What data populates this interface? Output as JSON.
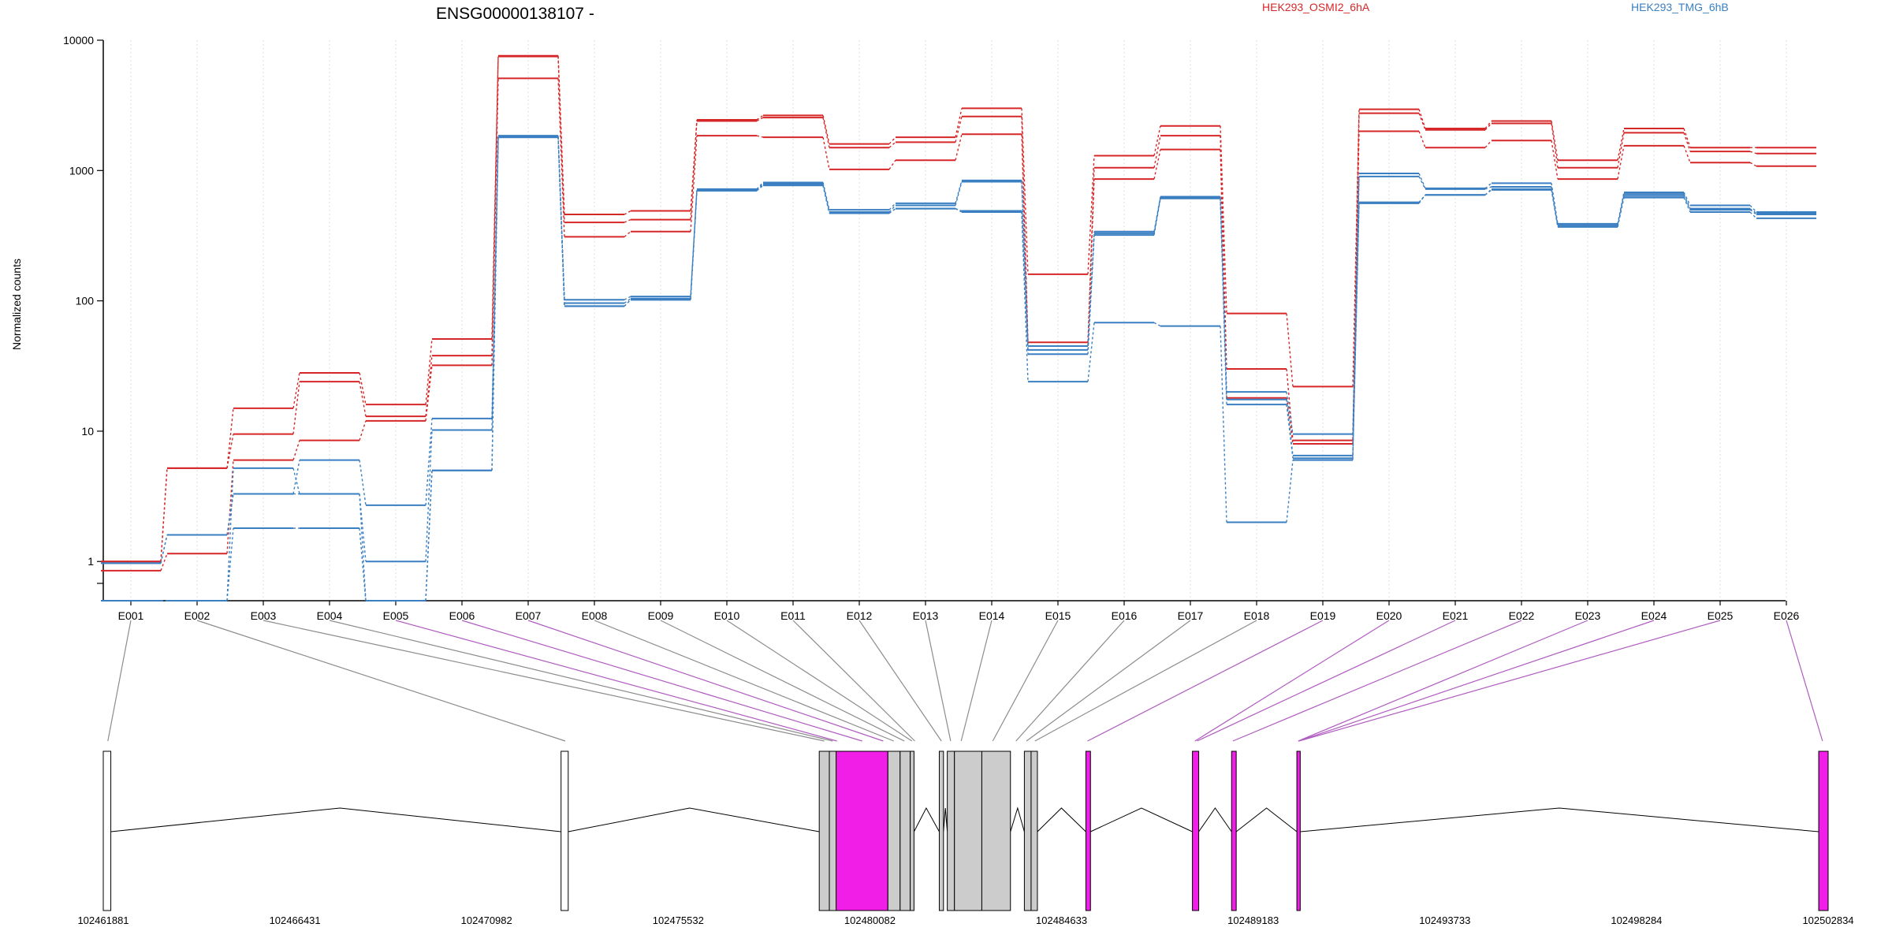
{
  "chart_data": {
    "type": "line",
    "title": "ENSG00000138107 -",
    "ylabel": "Normalized counts",
    "xlabel": "",
    "yscale": "log",
    "ylim": [
      0.5,
      10000
    ],
    "yticks": [
      "1",
      "10",
      "100",
      "1000",
      "10000"
    ],
    "grid": "vertical dotted lines at exon bins",
    "legend_placement": "top",
    "groups": [
      {
        "name": "HEK293_OSMI2_6hA",
        "color": "#d62728"
      },
      {
        "name": "HEK293_TMG_6hB",
        "color": "#3a7fc1"
      }
    ],
    "categories": [
      "E001",
      "E002",
      "E003",
      "E004",
      "E005",
      "E006",
      "E007",
      "E008",
      "E009",
      "E010",
      "E011",
      "E012",
      "E013",
      "E014",
      "E015",
      "E016",
      "E017",
      "E018",
      "E019",
      "E020",
      "E021",
      "E022",
      "E023",
      "E024",
      "E025",
      "E026"
    ],
    "series": [
      {
        "group": 0,
        "values": [
          1.0,
          5.2,
          15,
          28,
          16,
          51,
          7600,
          460,
          490,
          2450,
          2650,
          1600,
          1800,
          3000,
          160,
          1300,
          2200,
          80,
          22,
          2950,
          2100,
          2400,
          1200,
          2100,
          1500,
          1500
        ]
      },
      {
        "group": 0,
        "values": [
          1.0,
          5.2,
          9.5,
          24,
          13,
          38,
          7500,
          400,
          420,
          2400,
          2550,
          1500,
          1650,
          2600,
          48,
          1050,
          1850,
          30,
          8.5,
          2750,
          2050,
          2300,
          1050,
          1950,
          1400,
          1350
        ]
      },
      {
        "group": 0,
        "values": [
          0.85,
          1.15,
          6.0,
          8.5,
          12,
          32,
          5100,
          310,
          340,
          1850,
          1800,
          1020,
          1200,
          1900,
          45,
          860,
          1450,
          18,
          8,
          2000,
          1500,
          1700,
          860,
          1550,
          1150,
          1080
        ]
      },
      {
        "group": 1,
        "values": [
          0.97,
          1.6,
          3.3,
          6.0,
          2.7,
          12.5,
          1850,
          102,
          108,
          720,
          810,
          500,
          560,
          840,
          45,
          340,
          630,
          20,
          9.5,
          950,
          730,
          800,
          390,
          680,
          540,
          480
        ]
      },
      {
        "group": 1,
        "values": [
          0.97,
          1.6,
          3.3,
          3.3,
          1.0,
          10.2,
          1820,
          96,
          104,
          710,
          790,
          480,
          540,
          820,
          42,
          330,
          620,
          17.5,
          6.5,
          900,
          720,
          750,
          380,
          660,
          510,
          470
        ]
      },
      {
        "group": 1,
        "values": [
          0.5,
          0.5,
          5.2,
          3.3,
          0.5,
          5.0,
          1800,
          91,
          102,
          700,
          770,
          470,
          510,
          490,
          39,
          320,
          610,
          16,
          6.2,
          570,
          650,
          720,
          370,
          640,
          500,
          460
        ]
      },
      {
        "group": 1,
        "values": [
          0.5,
          0.5,
          1.8,
          1.8,
          0.5,
          5.0,
          1800,
          91,
          102,
          700,
          770,
          470,
          510,
          480,
          24,
          68,
          64,
          2.0,
          6.0,
          560,
          650,
          710,
          370,
          620,
          480,
          430
        ]
      }
    ],
    "gene_model": {
      "coord_labels": [
        "102461881",
        "102466431",
        "102470982",
        "102475532",
        "102480082",
        "102484633",
        "102489183",
        "102493733",
        "102498284",
        "102502834"
      ],
      "genome_start": 102461881,
      "genome_end": 102502834,
      "exons": [
        {
          "id": "E001",
          "start": 102461881,
          "end": 102462060,
          "kind": "empty"
        },
        {
          "id": "E002",
          "start": 102472750,
          "end": 102472920,
          "kind": "empty"
        },
        {
          "id": "E003",
          "start": 102478880,
          "end": 102479120,
          "kind": "gray"
        },
        {
          "id": "E004",
          "start": 102479120,
          "end": 102479280,
          "kind": "gray"
        },
        {
          "id": "E005",
          "start": 102479280,
          "end": 102480510,
          "kind": "magenta"
        },
        {
          "id": "E006",
          "start": 102480510,
          "end": 102480800,
          "kind": "gray"
        },
        {
          "id": "E007",
          "start": 102480800,
          "end": 102481040,
          "kind": "gray"
        },
        {
          "id": "E008",
          "start": 102481040,
          "end": 102481130,
          "kind": "gray"
        },
        {
          "id": "E009",
          "start": 102481730,
          "end": 102481830,
          "kind": "gray"
        },
        {
          "id": "E010",
          "start": 102481920,
          "end": 102482090,
          "kind": "gray"
        },
        {
          "id": "E011",
          "start": 102482090,
          "end": 102482740,
          "kind": "gray"
        },
        {
          "id": "E012",
          "start": 102482740,
          "end": 102483420,
          "kind": "gray"
        },
        {
          "id": "E013",
          "start": 102483750,
          "end": 102483910,
          "kind": "gray"
        },
        {
          "id": "E014",
          "start": 102483910,
          "end": 102484060,
          "kind": "gray"
        },
        {
          "id": "E015",
          "start": 102485210,
          "end": 102485320,
          "kind": "magenta"
        },
        {
          "id": "E016",
          "start": 102487740,
          "end": 102487890,
          "kind": "magenta"
        },
        {
          "id": "E017",
          "start": 102488670,
          "end": 102488780,
          "kind": "magenta"
        },
        {
          "id": "E018",
          "start": 102490220,
          "end": 102490300,
          "kind": "magenta"
        },
        {
          "id": "E019",
          "start": 102502610,
          "end": 102502834,
          "kind": "magenta"
        }
      ],
      "links": [
        {
          "bin": "E001",
          "coord": 102461990,
          "kind": "gray"
        },
        {
          "bin": "E002",
          "coord": 102472850,
          "kind": "gray"
        },
        {
          "bin": "E003",
          "coord": 102479000,
          "kind": "gray"
        },
        {
          "bin": "E004",
          "coord": 102479200,
          "kind": "gray"
        },
        {
          "bin": "E005",
          "coord": 102479300,
          "kind": "magenta"
        },
        {
          "bin": "E006",
          "coord": 102479900,
          "kind": "magenta"
        },
        {
          "bin": "E007",
          "coord": 102480400,
          "kind": "magenta"
        },
        {
          "bin": "E008",
          "coord": 102480650,
          "kind": "gray"
        },
        {
          "bin": "E009",
          "coord": 102480900,
          "kind": "gray"
        },
        {
          "bin": "E010",
          "coord": 102481080,
          "kind": "gray"
        },
        {
          "bin": "E011",
          "coord": 102481150,
          "kind": "gray"
        },
        {
          "bin": "E012",
          "coord": 102481780,
          "kind": "gray"
        },
        {
          "bin": "E013",
          "coord": 102482000,
          "kind": "gray"
        },
        {
          "bin": "E014",
          "coord": 102482250,
          "kind": "gray"
        },
        {
          "bin": "E015",
          "coord": 102483000,
          "kind": "gray"
        },
        {
          "bin": "E016",
          "coord": 102483550,
          "kind": "gray"
        },
        {
          "bin": "E017",
          "coord": 102483800,
          "kind": "gray"
        },
        {
          "bin": "E018",
          "coord": 102484000,
          "kind": "gray"
        },
        {
          "bin": "E019",
          "coord": 102485250,
          "kind": "magenta"
        },
        {
          "bin": "E020",
          "coord": 102487800,
          "kind": "magenta"
        },
        {
          "bin": "E021",
          "coord": 102487850,
          "kind": "magenta"
        },
        {
          "bin": "E022",
          "coord": 102488700,
          "kind": "magenta"
        },
        {
          "bin": "E023",
          "coord": 102490250,
          "kind": "magenta"
        },
        {
          "bin": "E024",
          "coord": 102490260,
          "kind": "magenta"
        },
        {
          "bin": "E025",
          "coord": 102490270,
          "kind": "magenta"
        },
        {
          "bin": "E026",
          "coord": 102502700,
          "kind": "magenta"
        }
      ],
      "introns": [
        {
          "from": 102462060,
          "to": 102472750,
          "peak": 102467500
        },
        {
          "from": 102472920,
          "to": 102478880,
          "peak": 102475800
        },
        {
          "from": 102481130,
          "to": 102481730,
          "peak": 102481420
        },
        {
          "from": 102481830,
          "to": 102481920,
          "peak": 102481875
        },
        {
          "from": 102483420,
          "to": 102483750,
          "peak": 102483590
        },
        {
          "from": 102484060,
          "to": 102485210,
          "peak": 102484630
        },
        {
          "from": 102485320,
          "to": 102487740,
          "peak": 102486530
        },
        {
          "from": 102487890,
          "to": 102488670,
          "peak": 102488280
        },
        {
          "from": 102488780,
          "to": 102490220,
          "peak": 102489500
        },
        {
          "from": 102490300,
          "to": 102502610,
          "peak": 102496450
        }
      ]
    }
  },
  "colors": {
    "group_a": "#d62728",
    "group_b": "#3a7fc1",
    "exon_gray": "#cccccc",
    "exon_magenta": "#f01ee6",
    "link_gray": "#8c8c8c",
    "link_magenta": "#b05cc0"
  }
}
